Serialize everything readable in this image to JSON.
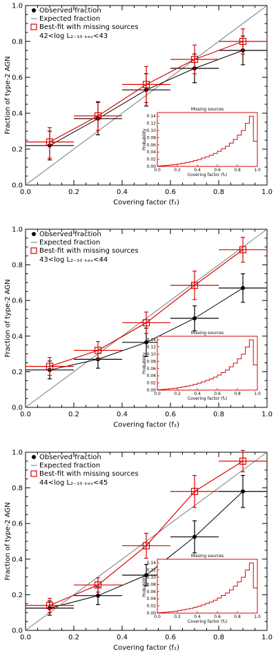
{
  "chart_data": [
    {
      "type": "scatter",
      "xlabel": "Covering factor (f₂)",
      "ylabel": "Fraction of type-2 AGN",
      "xlim": [
        0,
        1
      ],
      "ylim": [
        0,
        1
      ],
      "xticks": [
        "0.0",
        "0.2",
        "0.4",
        "0.6",
        "0.8",
        "1.0"
      ],
      "yticks": [
        "0.0",
        "0.2",
        "0.4",
        "0.6",
        "0.8",
        "1.0"
      ],
      "luminosity_label": "42<log L₂₋₁₀ ₖₑᵥ<43",
      "legend": {
        "position": "top-left",
        "observed": "Observed fraction",
        "expected": "Expected fraction",
        "bestfit": "Best-fit with missing sources"
      },
      "series": [
        {
          "name": "Observed fraction",
          "color": "#000000",
          "x": [
            0.1,
            0.3,
            0.5,
            0.7,
            0.9
          ],
          "y": [
            0.22,
            0.37,
            0.53,
            0.65,
            0.75
          ],
          "yerr_low": [
            0.08,
            0.09,
            0.09,
            0.08,
            0.08
          ],
          "yerr_high": [
            0.08,
            0.09,
            0.09,
            0.08,
            0.08
          ],
          "xerr": 0.1
        },
        {
          "name": "Best-fit with missing sources",
          "color": "#dd0000",
          "x": [
            0.1,
            0.3,
            0.5,
            0.7,
            0.9
          ],
          "y": [
            0.24,
            0.385,
            0.56,
            0.7,
            0.8
          ],
          "yerr_low": [
            0.09,
            0.08,
            0.1,
            0.08,
            0.07
          ],
          "yerr_high": [
            0.08,
            0.08,
            0.1,
            0.08,
            0.07
          ],
          "xerr": 0.1
        },
        {
          "name": "Expected fraction",
          "color": "#777777",
          "x": [
            0,
            1
          ],
          "y": [
            0,
            1
          ]
        }
      ],
      "inset": {
        "title": "Missing sources",
        "xlabel": "Covering factor (f₂)",
        "ylabel": "Probability",
        "xlim": [
          0,
          1
        ],
        "ylim": [
          0,
          0.15
        ],
        "xticks": [
          "0.0",
          "0.2",
          "0.4",
          "0.6",
          "0.8",
          "1.0"
        ],
        "yticks": [
          "0.00",
          "0.02",
          "0.04",
          "0.06",
          "0.08",
          "0.10",
          "0.12",
          "0.14"
        ],
        "color": "#dd0000"
      }
    },
    {
      "type": "scatter",
      "xlabel": "Covering factor (f₂)",
      "ylabel": "Fraction of type-2 AGN",
      "xlim": [
        0,
        1
      ],
      "ylim": [
        0,
        1
      ],
      "xticks": [
        "0.0",
        "0.2",
        "0.4",
        "0.6",
        "0.8",
        "1.0"
      ],
      "yticks": [
        "0.0",
        "0.2",
        "0.4",
        "0.6",
        "0.8",
        "1.0"
      ],
      "luminosity_label": "43<log L₂₋₁₀ ₖₑᵥ<44",
      "legend": {
        "position": "top-left",
        "observed": "Observed fraction",
        "expected": "Expected fraction",
        "bestfit": "Best-fit with missing sources"
      },
      "series": [
        {
          "name": "Observed fraction",
          "color": "#000000",
          "x": [
            0.1,
            0.3,
            0.5,
            0.7,
            0.9
          ],
          "y": [
            0.21,
            0.27,
            0.365,
            0.5,
            0.67
          ],
          "yerr_low": [
            0.05,
            0.05,
            0.08,
            0.07,
            0.08
          ],
          "yerr_high": [
            0.05,
            0.05,
            0.08,
            0.07,
            0.08
          ],
          "xerr": 0.1
        },
        {
          "name": "Best-fit with missing sources",
          "color": "#dd0000",
          "x": [
            0.1,
            0.3,
            0.5,
            0.7,
            0.9
          ],
          "y": [
            0.23,
            0.32,
            0.475,
            0.685,
            0.885
          ],
          "yerr_low": [
            0.05,
            0.05,
            0.06,
            0.08,
            0.07
          ],
          "yerr_high": [
            0.05,
            0.05,
            0.06,
            0.08,
            0.07
          ],
          "xerr": 0.1
        },
        {
          "name": "Expected fraction",
          "color": "#777777",
          "x": [
            0,
            1
          ],
          "y": [
            0,
            1
          ]
        }
      ],
      "inset": {
        "title": "Missing sources",
        "xlabel": "Covering factor (f₂)",
        "ylabel": "Probability",
        "xlim": [
          0,
          1
        ],
        "ylim": [
          0,
          0.15
        ],
        "xticks": [
          "0.0",
          "0.2",
          "0.4",
          "0.6",
          "0.8",
          "1.0"
        ],
        "yticks": [
          "0.00",
          "0.02",
          "0.04",
          "0.06",
          "0.08",
          "0.10",
          "0.12",
          "0.14"
        ],
        "color": "#dd0000"
      }
    },
    {
      "type": "scatter",
      "xlabel": "Covering factor (f₂)",
      "ylabel": "Fraction of type-2 AGN",
      "xlim": [
        0,
        1
      ],
      "ylim": [
        0,
        1
      ],
      "xticks": [
        "0.0",
        "0.2",
        "0.4",
        "0.6",
        "0.8",
        "1.0"
      ],
      "yticks": [
        "0.0",
        "0.2",
        "0.4",
        "0.6",
        "0.8",
        "1.0"
      ],
      "luminosity_label": "44<log L₂₋₁₀ ₖₑᵥ<45",
      "legend": {
        "position": "top-left",
        "observed": "Observed fraction",
        "expected": "Expected fraction",
        "bestfit": "Best-fit with missing sources"
      },
      "series": [
        {
          "name": "Observed fraction",
          "color": "#000000",
          "x": [
            0.1,
            0.3,
            0.5,
            0.7,
            0.9
          ],
          "y": [
            0.125,
            0.195,
            0.31,
            0.525,
            0.78
          ],
          "yerr_low": [
            0.04,
            0.05,
            0.06,
            0.09,
            0.09
          ],
          "yerr_high": [
            0.04,
            0.05,
            0.06,
            0.09,
            0.09
          ],
          "xerr": 0.1
        },
        {
          "name": "Best-fit with missing sources",
          "color": "#dd0000",
          "x": [
            0.1,
            0.3,
            0.5,
            0.7,
            0.9
          ],
          "y": [
            0.14,
            0.255,
            0.475,
            0.78,
            0.95
          ],
          "yerr_low": [
            0.04,
            0.04,
            0.07,
            0.09,
            0.06
          ],
          "yerr_high": [
            0.04,
            0.04,
            0.07,
            0.09,
            0.06
          ],
          "xerr": 0.1
        },
        {
          "name": "Expected fraction",
          "color": "#777777",
          "x": [
            0,
            1
          ],
          "y": [
            0,
            1
          ]
        }
      ],
      "inset": {
        "title": "Missing sources",
        "xlabel": "Covering factor (f₂)",
        "ylabel": "Probability",
        "xlim": [
          0,
          1
        ],
        "ylim": [
          0,
          0.15
        ],
        "xticks": [
          "0.0",
          "0.2",
          "0.4",
          "0.6",
          "0.8",
          "1.0"
        ],
        "yticks": [
          "0.00",
          "0.02",
          "0.04",
          "0.06",
          "0.08",
          "0.10",
          "0.12",
          "0.14"
        ],
        "color": "#dd0000"
      }
    }
  ],
  "inset_histogram": {
    "bin_width": 0.04,
    "bin_start": [
      0.0,
      0.04,
      0.08,
      0.12,
      0.16,
      0.2,
      0.24,
      0.28,
      0.32,
      0.36,
      0.4,
      0.44,
      0.48,
      0.52,
      0.56,
      0.6,
      0.64,
      0.68,
      0.72,
      0.76,
      0.8,
      0.84,
      0.88,
      0.92,
      0.96
    ],
    "probability": [
      0.001,
      0.002,
      0.003,
      0.004,
      0.005,
      0.007,
      0.009,
      0.011,
      0.013,
      0.016,
      0.019,
      0.023,
      0.027,
      0.031,
      0.036,
      0.042,
      0.049,
      0.056,
      0.065,
      0.075,
      0.087,
      0.1,
      0.12,
      0.14,
      0.07
    ]
  }
}
